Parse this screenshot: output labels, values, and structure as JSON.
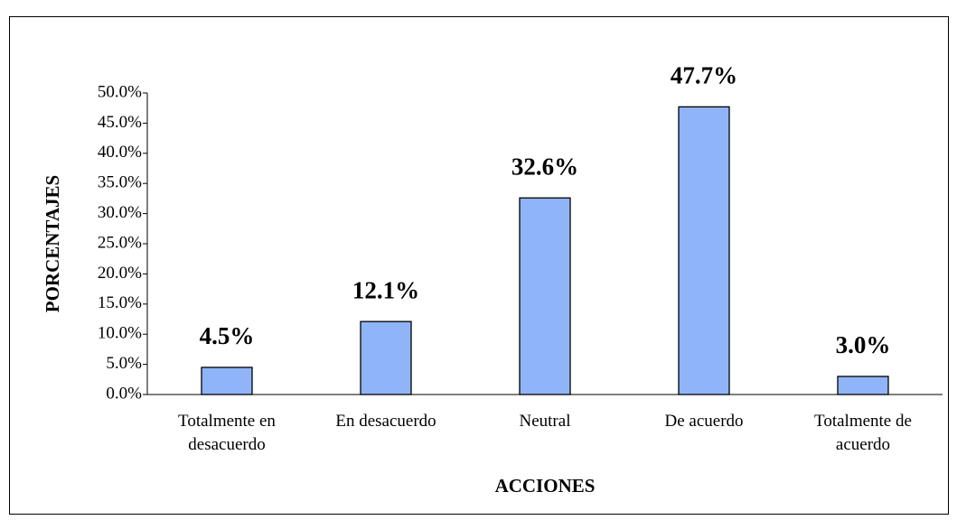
{
  "chart_data": {
    "type": "bar",
    "x_label": "ACCIONES",
    "y_label": "PORCENTAJES",
    "categories": [
      "Totalmente en desacuerdo",
      "En desacuerdo",
      "Neutral",
      "De acuerdo",
      "Totalmente de acuerdo"
    ],
    "values": [
      4.5,
      12.1,
      32.6,
      47.7,
      3.0
    ],
    "value_labels": [
      "4.5%",
      "12.1%",
      "32.6%",
      "47.7%",
      "3.0%"
    ],
    "color": "#8fb4f8",
    "ylim": [
      0,
      50
    ],
    "yticks": [
      {
        "value": 0,
        "label": "0.0%"
      },
      {
        "value": 5,
        "label": "5.0%"
      },
      {
        "value": 10,
        "label": "10.0%"
      },
      {
        "value": 15,
        "label": "15.0%"
      },
      {
        "value": 20,
        "label": "20.0%"
      },
      {
        "value": 25,
        "label": "25.0%"
      },
      {
        "value": 30,
        "label": "30.0%"
      },
      {
        "value": 35,
        "label": "35.0%"
      },
      {
        "value": 40,
        "label": "40.0%"
      },
      {
        "value": 45,
        "label": "45.0%"
      },
      {
        "value": 50,
        "label": "50.0%"
      }
    ],
    "grid": false
  }
}
